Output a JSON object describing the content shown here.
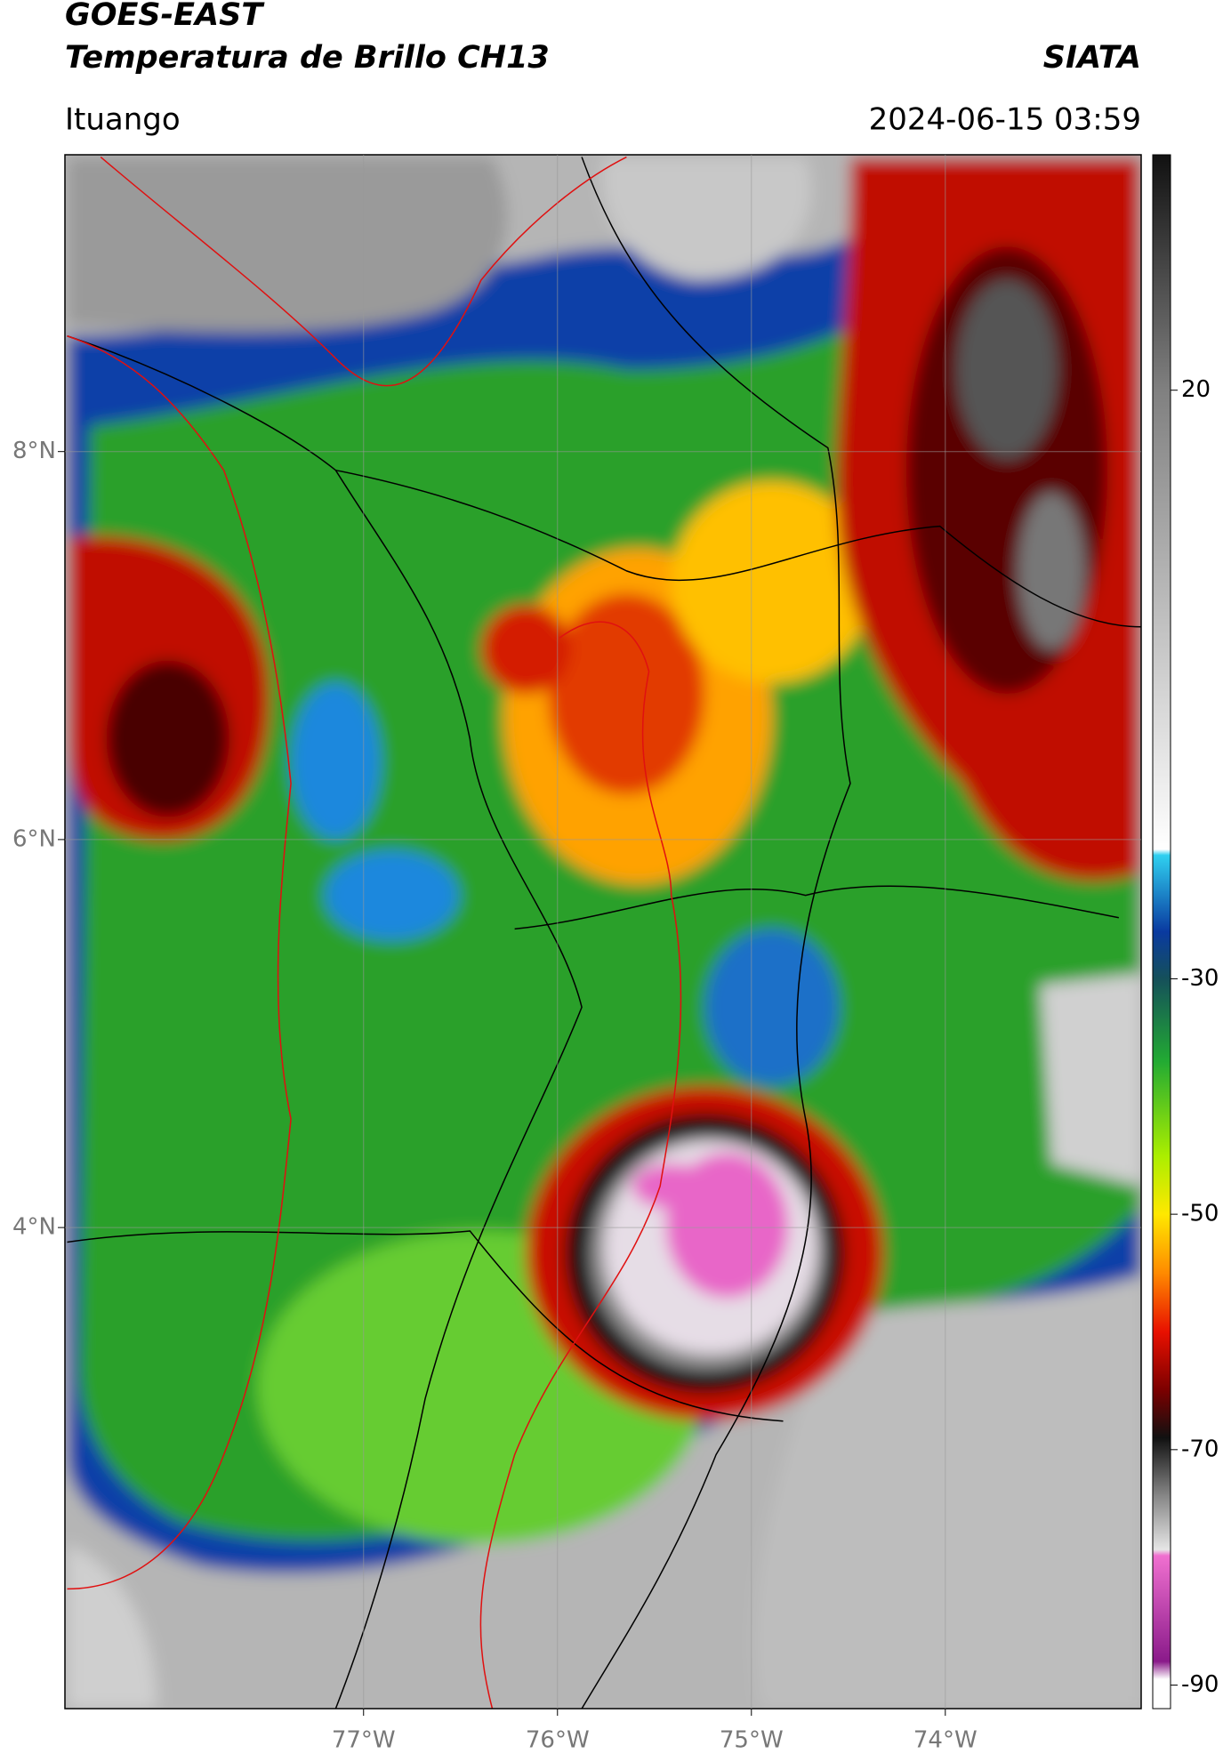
{
  "header": {
    "title": "GOES-EAST",
    "subtitle": "Temperatura de Brillo CH13",
    "source": "SIATA",
    "region": "Ituango",
    "timestamp": "2024-06-15 03:59"
  },
  "map": {
    "latlim": [
      1.52,
      9.53
    ],
    "lonlim": [
      -78.54,
      -72.99
    ],
    "lat_ticks": [
      {
        "value": 8,
        "label": "8°N"
      },
      {
        "value": 6,
        "label": "6°N"
      },
      {
        "value": 4,
        "label": "4°N"
      }
    ],
    "lon_ticks": [
      {
        "value": -77,
        "label": "77°W"
      },
      {
        "value": -76,
        "label": "76°W"
      },
      {
        "value": -75,
        "label": "75°W"
      },
      {
        "value": -74,
        "label": "74°W"
      }
    ]
  },
  "colorbar": {
    "lim": [
      -92,
      40
    ],
    "ticks": [
      20,
      -30,
      -50,
      -70,
      -90
    ],
    "stops": [
      {
        "value": 40,
        "color": "#111111"
      },
      {
        "value": 20,
        "color": "#808080"
      },
      {
        "value": -19,
        "color": "#ffffff"
      },
      {
        "value": -19.5,
        "color": "#2fd0f0"
      },
      {
        "value": -26,
        "color": "#0a3aa0"
      },
      {
        "value": -30,
        "color": "#15505a"
      },
      {
        "value": -37,
        "color": "#22aa33"
      },
      {
        "value": -45,
        "color": "#aaee00"
      },
      {
        "value": -50,
        "color": "#ffe800"
      },
      {
        "value": -55,
        "color": "#ff8a00"
      },
      {
        "value": -60,
        "color": "#e81000"
      },
      {
        "value": -65,
        "color": "#7a0000"
      },
      {
        "value": -69,
        "color": "#111111"
      },
      {
        "value": -74,
        "color": "#888888"
      },
      {
        "value": -78.5,
        "color": "#e6e6e6"
      },
      {
        "value": -79,
        "color": "#f070d0"
      },
      {
        "value": -88,
        "color": "#8a1a8a"
      },
      {
        "value": -89.5,
        "color": "#ffffff"
      }
    ]
  }
}
